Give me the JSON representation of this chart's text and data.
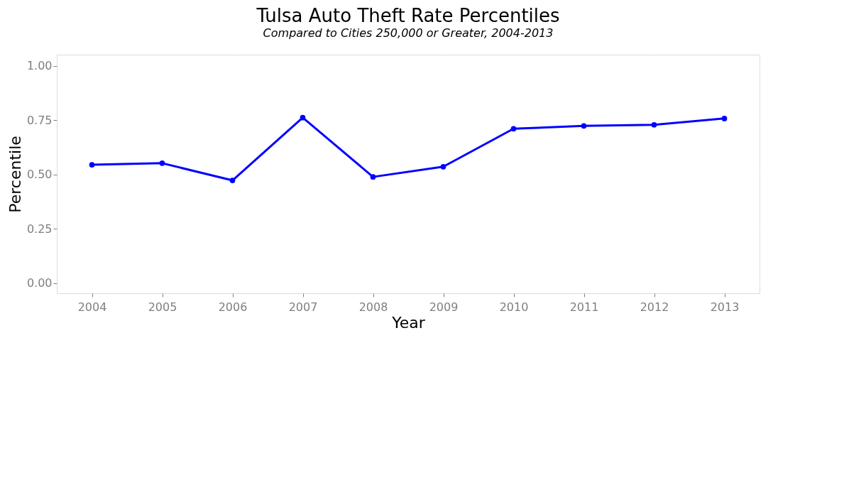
{
  "chart_data": {
    "type": "line",
    "title": "Tulsa Auto Theft Rate Percentiles",
    "subtitle": "Compared to Cities 250,000 or Greater, 2004-2013",
    "xlabel": "Year",
    "ylabel": "Percentile",
    "categories": [
      "2004",
      "2005",
      "2006",
      "2007",
      "2008",
      "2009",
      "2010",
      "2011",
      "2012",
      "2013"
    ],
    "series": [
      {
        "color": "#0000ff",
        "values": [
          0.545,
          0.552,
          0.473,
          0.762,
          0.489,
          0.536,
          0.711,
          0.724,
          0.729,
          0.758
        ]
      }
    ],
    "ylim": [
      -0.047,
      1.052
    ],
    "yticks": [
      {
        "value": 0,
        "label": "0.00"
      },
      {
        "value": 0.25,
        "label": "0.25"
      },
      {
        "value": 0.5,
        "label": "0.50"
      },
      {
        "value": 0.75,
        "label": "0.75"
      },
      {
        "value": 1,
        "label": "1.00"
      }
    ],
    "grid": true,
    "marker": "circle",
    "line_style": "solid"
  }
}
